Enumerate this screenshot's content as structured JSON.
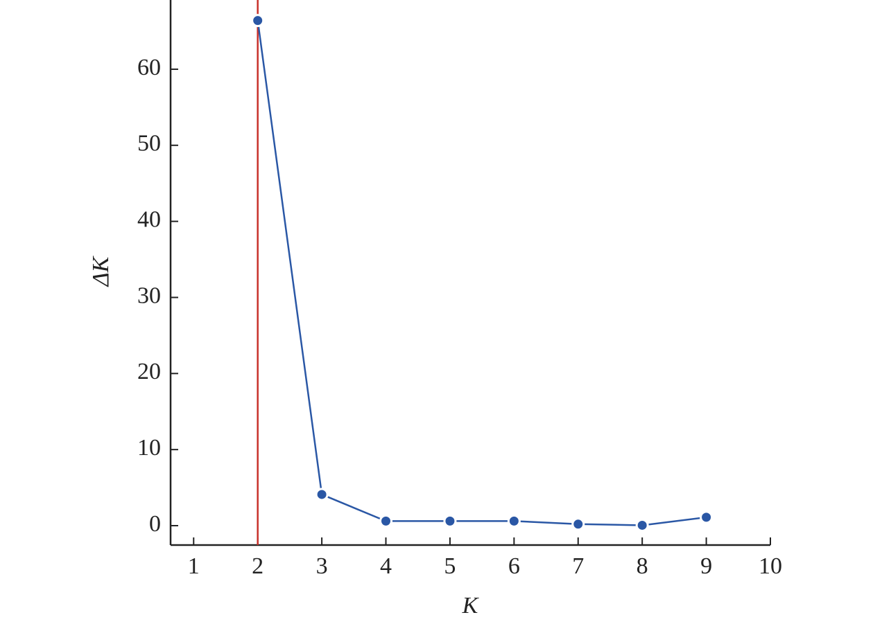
{
  "chart_data": {
    "type": "line",
    "x_label": "K",
    "y_label": "ΔK",
    "x": [
      2,
      3,
      4,
      5,
      6,
      7,
      8,
      9
    ],
    "series": [
      {
        "color": "#2a57a5",
        "values": [
          66.4,
          4.1,
          0.6,
          0.6,
          0.6,
          0.2,
          0.05,
          1.1
        ]
      }
    ],
    "xlim": [
      0.64,
      10
    ],
    "ylim": [
      -2.55,
      69.1
    ],
    "xticks": [
      1,
      2,
      3,
      4,
      5,
      6,
      7,
      8,
      9,
      10
    ],
    "yticks": [
      0,
      10,
      20,
      30,
      40,
      50,
      60
    ],
    "vline": {
      "x": 2,
      "color": "#c8302a"
    },
    "grid": false
  }
}
